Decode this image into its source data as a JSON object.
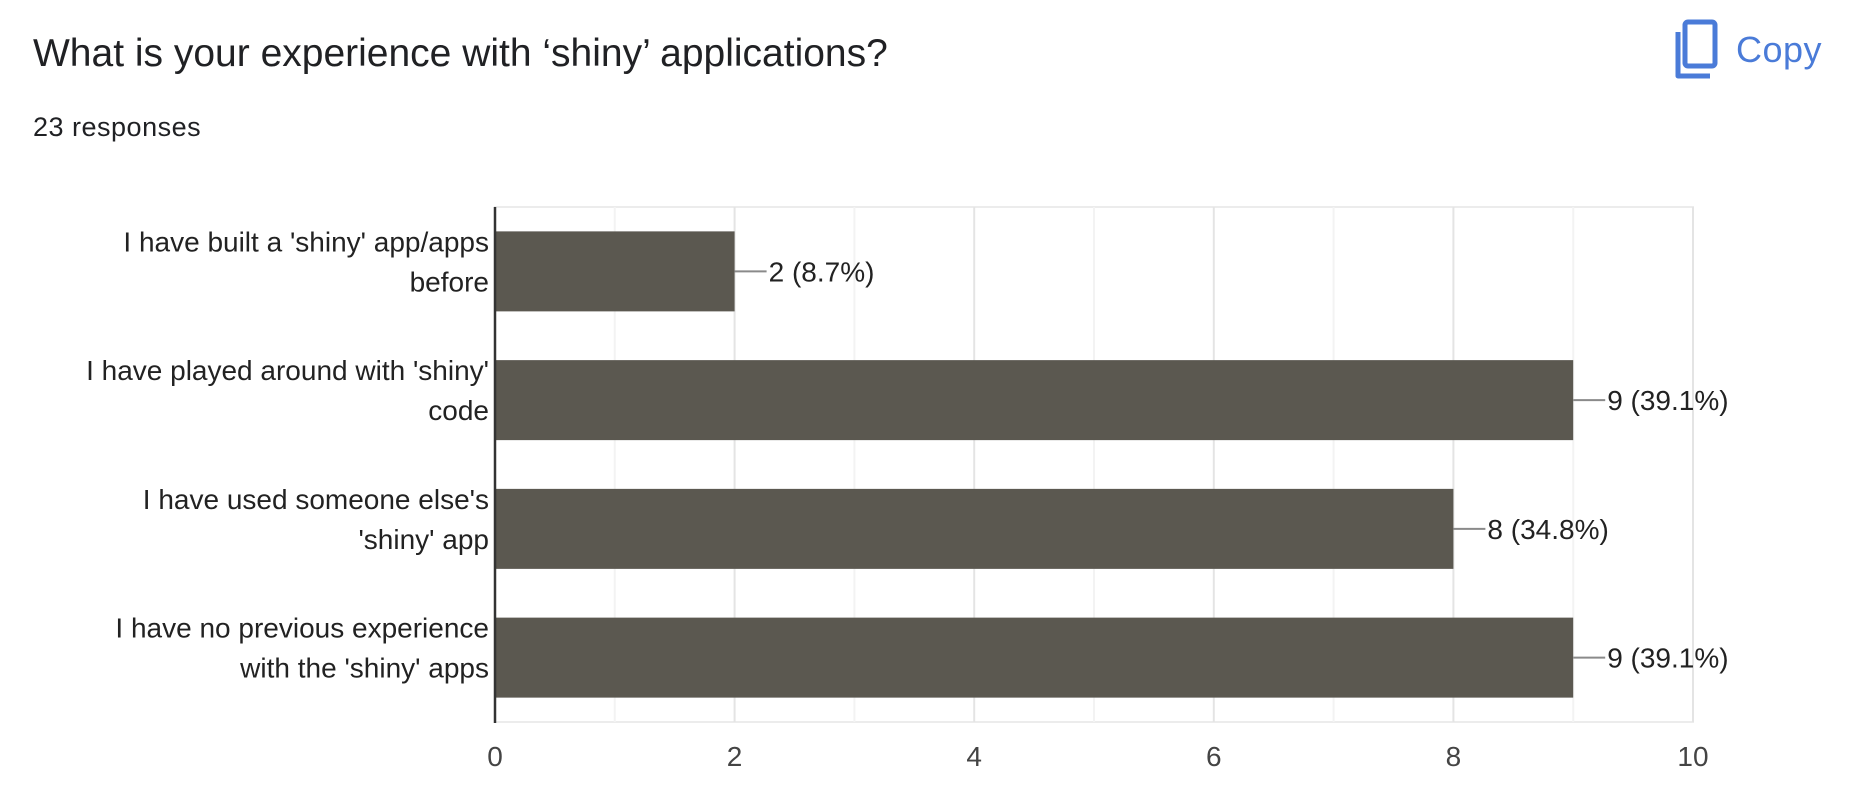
{
  "header": {
    "title": "What is your experience with ‘shiny’ applications?",
    "responses": "23 responses",
    "copy_label": "Copy",
    "copy_icon": "copy-icon",
    "accent": "#4a7bd8"
  },
  "chart_data": {
    "type": "bar",
    "orientation": "horizontal",
    "categories": [
      [
        "I have built a 'shiny' app/apps",
        "before"
      ],
      [
        "I have played around with 'shiny'",
        "code"
      ],
      [
        "I have used someone else's",
        "'shiny' app"
      ],
      [
        "I have no previous experience",
        "with the 'shiny' apps"
      ]
    ],
    "values": [
      2,
      9,
      8,
      9
    ],
    "data_labels": [
      "2 (8.7%)",
      "9 (39.1%)",
      "8 (34.8%)",
      "9 (39.1%)"
    ],
    "xlim": [
      0,
      10
    ],
    "xticks": [
      0,
      2,
      4,
      6,
      8,
      10
    ],
    "xtick_labels": [
      "0",
      "2",
      "4",
      "6",
      "8",
      "10"
    ],
    "grid": true,
    "bar_color": "#5b5850",
    "title": "",
    "xlabel": "",
    "ylabel": ""
  }
}
